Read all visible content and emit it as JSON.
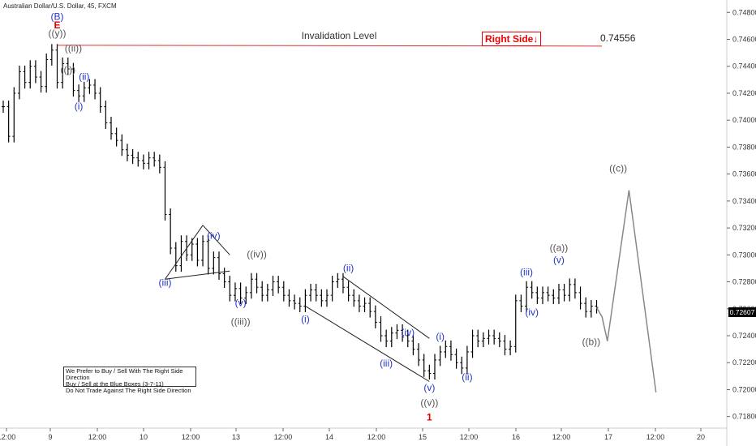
{
  "header": {
    "title": "Australian Dollar/U.S. Dollar, 45, FXCM"
  },
  "notes": [
    "We Prefer to Buy / Sell With The Right Side Direction",
    "Buy / Sell at the Blue Boxes (3-7-11)",
    "Do Not Trade Against The Right Side Direction"
  ],
  "right_side": "Right Side↓",
  "current_price": "0.72607",
  "colors": {
    "blue": "#2233cc",
    "red": "#dd0000",
    "gray": "#555555",
    "line": "#000000",
    "invalidation": "#e03030"
  },
  "chart_data": {
    "type": "line",
    "title": "Australian Dollar/U.S. Dollar, 45, FXCM",
    "ylim": [
      0.7175,
      0.7488
    ],
    "y_ticks": [
      "0.74800",
      "0.74600",
      "0.74400",
      "0.74200",
      "0.74000",
      "0.73800",
      "0.73600",
      "0.73400",
      "0.73200",
      "0.73000",
      "0.72800",
      "0.72600",
      "0.72400",
      "0.72200",
      "0.72000",
      "0.71800"
    ],
    "x_ticks": [
      "12:00",
      "9",
      "12:00",
      "10",
      "12:00",
      "13",
      "12:00",
      "14",
      "12:00",
      "15",
      "12:00",
      "16",
      "12:00",
      "17",
      "12:00",
      "20"
    ],
    "invalidation": {
      "label": "Invalidation Level",
      "value": 0.74556,
      "value_label": "0.74556"
    },
    "price_path": [
      [
        0,
        0.741
      ],
      [
        1,
        0.7388
      ],
      [
        2,
        0.742
      ],
      [
        3,
        0.7436
      ],
      [
        4,
        0.7428
      ],
      [
        5,
        0.744
      ],
      [
        6,
        0.7432
      ],
      [
        7,
        0.7425
      ],
      [
        8,
        0.7445
      ],
      [
        9,
        0.7452
      ],
      [
        10,
        0.7428
      ],
      [
        11,
        0.7442
      ],
      [
        12,
        0.7438
      ],
      [
        13,
        0.7422
      ],
      [
        14,
        0.7418
      ],
      [
        15,
        0.7424
      ],
      [
        16,
        0.7426
      ],
      [
        17,
        0.742
      ],
      [
        18,
        0.741
      ],
      [
        19,
        0.7398
      ],
      [
        20,
        0.739
      ],
      [
        21,
        0.7385
      ],
      [
        22,
        0.7378
      ],
      [
        23,
        0.7374
      ],
      [
        24,
        0.7372
      ],
      [
        25,
        0.737
      ],
      [
        26,
        0.7368
      ],
      [
        27,
        0.7372
      ],
      [
        28,
        0.737
      ],
      [
        29,
        0.7365
      ],
      [
        30,
        0.733
      ],
      [
        31,
        0.7305
      ],
      [
        32,
        0.7292
      ],
      [
        33,
        0.731
      ],
      [
        34,
        0.73
      ],
      [
        35,
        0.7308
      ],
      [
        36,
        0.7296
      ],
      [
        37,
        0.731
      ],
      [
        38,
        0.729
      ],
      [
        39,
        0.7298
      ],
      [
        40,
        0.7286
      ],
      [
        41,
        0.728
      ],
      [
        42,
        0.727
      ],
      [
        43,
        0.7275
      ],
      [
        44,
        0.7268
      ],
      [
        45,
        0.7272
      ],
      [
        46,
        0.7282
      ],
      [
        47,
        0.7276
      ],
      [
        48,
        0.727
      ],
      [
        49,
        0.7274
      ],
      [
        50,
        0.728
      ],
      [
        51,
        0.7276
      ],
      [
        52,
        0.727
      ],
      [
        53,
        0.7266
      ],
      [
        54,
        0.7264
      ],
      [
        55,
        0.7262
      ],
      [
        56,
        0.727
      ],
      [
        57,
        0.7274
      ],
      [
        58,
        0.727
      ],
      [
        59,
        0.7266
      ],
      [
        60,
        0.727
      ],
      [
        61,
        0.728
      ],
      [
        62,
        0.7282
      ],
      [
        63,
        0.7276
      ],
      [
        64,
        0.727
      ],
      [
        65,
        0.7266
      ],
      [
        66,
        0.7262
      ],
      [
        67,
        0.7264
      ],
      [
        68,
        0.7258
      ],
      [
        69,
        0.725
      ],
      [
        70,
        0.724
      ],
      [
        71,
        0.7236
      ],
      [
        72,
        0.7242
      ],
      [
        73,
        0.7244
      ],
      [
        74,
        0.724
      ],
      [
        75,
        0.7236
      ],
      [
        76,
        0.723
      ],
      [
        77,
        0.7222
      ],
      [
        78,
        0.7214
      ],
      [
        79,
        0.7212
      ],
      [
        80,
        0.7222
      ],
      [
        81,
        0.7228
      ],
      [
        82,
        0.7232
      ],
      [
        83,
        0.7226
      ],
      [
        84,
        0.722
      ],
      [
        85,
        0.7216
      ],
      [
        86,
        0.7228
      ],
      [
        87,
        0.724
      ],
      [
        88,
        0.7236
      ],
      [
        89,
        0.7238
      ],
      [
        90,
        0.724
      ],
      [
        91,
        0.7238
      ],
      [
        92,
        0.7236
      ],
      [
        93,
        0.723
      ],
      [
        94,
        0.7232
      ],
      [
        95,
        0.7266
      ],
      [
        96,
        0.7262
      ],
      [
        97,
        0.7276
      ],
      [
        98,
        0.7272
      ],
      [
        99,
        0.7268
      ],
      [
        100,
        0.7272
      ],
      [
        101,
        0.727
      ],
      [
        102,
        0.7268
      ],
      [
        103,
        0.7274
      ],
      [
        104,
        0.727
      ],
      [
        105,
        0.7278
      ],
      [
        106,
        0.7272
      ],
      [
        107,
        0.7264
      ],
      [
        108,
        0.7258
      ],
      [
        109,
        0.7262
      ],
      [
        110,
        0.7261
      ]
    ],
    "projection": [
      [
        110,
        0.7261
      ],
      [
        111,
        0.7254
      ],
      [
        112,
        0.7236
      ],
      [
        116,
        0.7348
      ],
      [
        121,
        0.7198
      ]
    ]
  },
  "wave_labels": [
    {
      "text": "(B)",
      "color": "blue",
      "x": 10,
      "y": 0.74745
    },
    {
      "text": "E",
      "color": "red",
      "x": 10,
      "y": 0.7468
    },
    {
      "text": "((y))",
      "color": "gray",
      "x": 10,
      "y": 0.7462
    },
    {
      "text": "((ii))",
      "color": "gray",
      "x": 13,
      "y": 0.7451
    },
    {
      "text": "((i))",
      "color": "gray",
      "x": 12,
      "y": 0.7435
    },
    {
      "text": "(ii)",
      "color": "blue",
      "x": 15,
      "y": 0.743
    },
    {
      "text": "(i)",
      "color": "blue",
      "x": 14,
      "y": 0.7408
    },
    {
      "text": "(iv)",
      "color": "blue",
      "x": 39,
      "y": 0.7312
    },
    {
      "text": "(iii)",
      "color": "blue",
      "x": 30,
      "y": 0.7277
    },
    {
      "text": "((iv))",
      "color": "gray",
      "x": 47,
      "y": 0.7298
    },
    {
      "text": "(v)",
      "color": "blue",
      "x": 44,
      "y": 0.7262
    },
    {
      "text": "((iii))",
      "color": "gray",
      "x": 44,
      "y": 0.7248
    },
    {
      "text": "(ii)",
      "color": "blue",
      "x": 64,
      "y": 0.7288
    },
    {
      "text": "(i)",
      "color": "blue",
      "x": 56,
      "y": 0.725
    },
    {
      "text": "(iv)",
      "color": "blue",
      "x": 75,
      "y": 0.724
    },
    {
      "text": "(iii)",
      "color": "blue",
      "x": 71,
      "y": 0.7217
    },
    {
      "text": "(i)",
      "color": "blue",
      "x": 81,
      "y": 0.7237
    },
    {
      "text": "(v)",
      "color": "blue",
      "x": 79,
      "y": 0.7199
    },
    {
      "text": "((v))",
      "color": "gray",
      "x": 79,
      "y": 0.7188
    },
    {
      "text": "1",
      "color": "red",
      "x": 79,
      "y": 0.7177
    },
    {
      "text": "(ii)",
      "color": "blue",
      "x": 86,
      "y": 0.7207
    },
    {
      "text": "(iii)",
      "color": "blue",
      "x": 97,
      "y": 0.7285
    },
    {
      "text": "(iv)",
      "color": "blue",
      "x": 98,
      "y": 0.7255
    },
    {
      "text": "((a))",
      "color": "gray",
      "x": 103,
      "y": 0.7303
    },
    {
      "text": "(v)",
      "color": "blue",
      "x": 103,
      "y": 0.7294
    },
    {
      "text": "((b))",
      "color": "gray",
      "x": 109,
      "y": 0.7233
    },
    {
      "text": "((c))",
      "color": "gray",
      "x": 114,
      "y": 0.7362
    }
  ],
  "channels": [
    [
      [
        30,
        0.7282
      ],
      [
        37,
        0.7322
      ]
    ],
    [
      [
        30,
        0.7282
      ],
      [
        42,
        0.7288
      ]
    ],
    [
      [
        37,
        0.7322
      ],
      [
        42,
        0.73
      ]
    ],
    [
      [
        63,
        0.7284
      ],
      [
        79,
        0.7238
      ]
    ],
    [
      [
        56,
        0.7262
      ],
      [
        79,
        0.7206
      ]
    ]
  ]
}
